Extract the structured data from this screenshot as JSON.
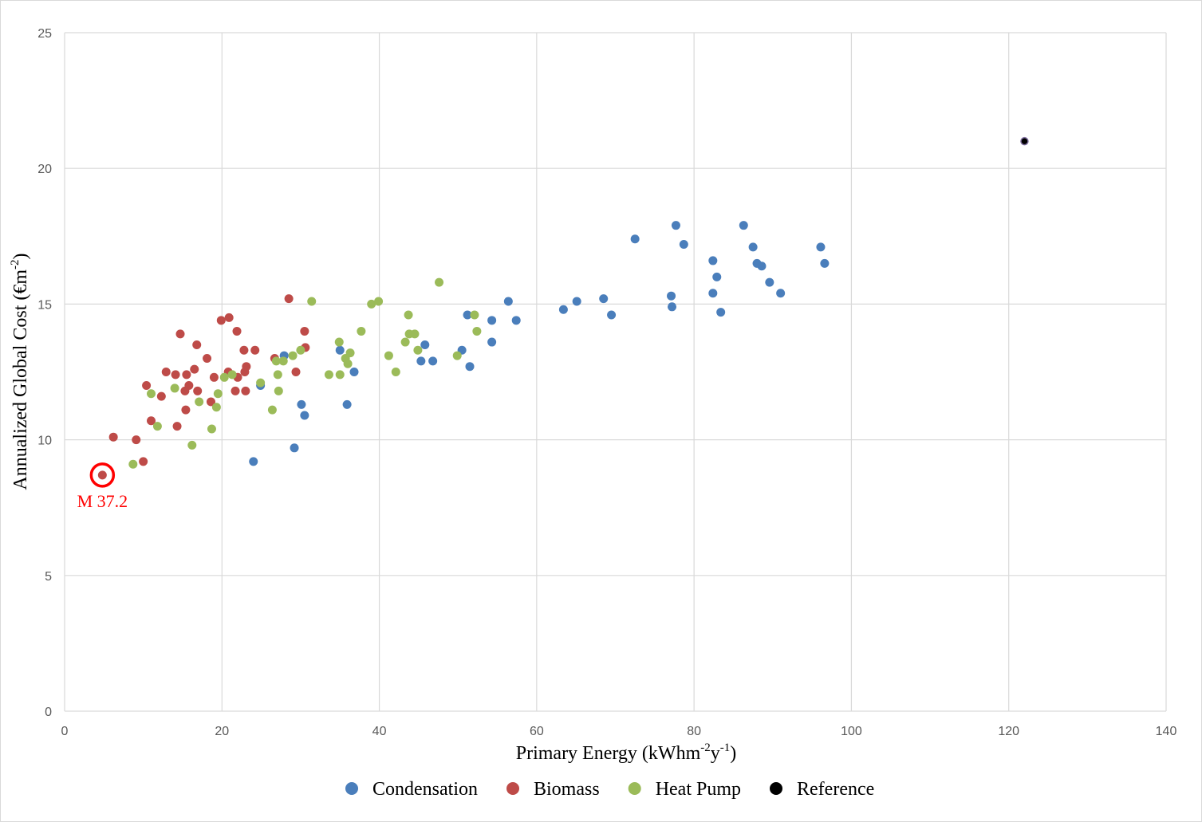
{
  "chart_data": {
    "type": "scatter",
    "title": "",
    "xlabel": "Primary Energy (kWhm-2y-1)",
    "xlabel_parts": {
      "base": "Primary Energy (kWhm",
      "sup1": "-2",
      "mid": "y",
      "sup2": "-1",
      "end": ")"
    },
    "ylabel": "Annualized Global Cost (€m-2)",
    "ylabel_parts": {
      "base": "Annualized Global Cost (€m",
      "sup": "-2",
      "end": ")"
    },
    "xlim": [
      0,
      140
    ],
    "ylim": [
      0,
      25
    ],
    "xticks": [
      0,
      20,
      40,
      60,
      80,
      100,
      120,
      140
    ],
    "yticks": [
      0,
      5,
      10,
      15,
      20,
      25
    ],
    "grid": true,
    "legend_position": "bottom",
    "series": [
      {
        "name": "Condensation",
        "color": "#4a7ebb",
        "points": [
          [
            24.0,
            9.2
          ],
          [
            24.9,
            12.0
          ],
          [
            27.9,
            13.1
          ],
          [
            29.2,
            9.7
          ],
          [
            30.1,
            11.3
          ],
          [
            30.5,
            10.9
          ],
          [
            35.0,
            13.3
          ],
          [
            35.9,
            11.3
          ],
          [
            36.8,
            12.5
          ],
          [
            45.3,
            12.9
          ],
          [
            45.8,
            13.5
          ],
          [
            46.8,
            12.9
          ],
          [
            50.5,
            13.3
          ],
          [
            51.2,
            14.6
          ],
          [
            51.5,
            12.7
          ],
          [
            54.3,
            14.4
          ],
          [
            54.3,
            13.6
          ],
          [
            56.4,
            15.1
          ],
          [
            57.4,
            14.4
          ],
          [
            63.4,
            14.8
          ],
          [
            65.1,
            15.1
          ],
          [
            68.5,
            15.2
          ],
          [
            69.5,
            14.6
          ],
          [
            72.5,
            17.4
          ],
          [
            77.1,
            15.3
          ],
          [
            77.2,
            14.9
          ],
          [
            77.7,
            17.9
          ],
          [
            78.7,
            17.2
          ],
          [
            82.4,
            16.6
          ],
          [
            82.4,
            15.4
          ],
          [
            82.9,
            16.0
          ],
          [
            83.4,
            14.7
          ],
          [
            86.3,
            17.9
          ],
          [
            87.5,
            17.1
          ],
          [
            88.0,
            16.5
          ],
          [
            88.6,
            16.4
          ],
          [
            89.6,
            15.8
          ],
          [
            91.0,
            15.4
          ],
          [
            96.1,
            17.1
          ],
          [
            96.6,
            16.5
          ]
        ]
      },
      {
        "name": "Biomass",
        "color": "#be4b48",
        "points": [
          [
            4.8,
            8.7
          ],
          [
            6.2,
            10.1
          ],
          [
            9.1,
            10.0
          ],
          [
            10.0,
            9.2
          ],
          [
            10.4,
            12.0
          ],
          [
            11.0,
            10.7
          ],
          [
            12.3,
            11.6
          ],
          [
            12.9,
            12.5
          ],
          [
            14.1,
            12.4
          ],
          [
            14.3,
            10.5
          ],
          [
            14.7,
            13.9
          ],
          [
            15.3,
            11.8
          ],
          [
            15.4,
            11.1
          ],
          [
            15.5,
            12.4
          ],
          [
            15.8,
            12.0
          ],
          [
            16.5,
            12.6
          ],
          [
            16.8,
            13.5
          ],
          [
            16.9,
            11.8
          ],
          [
            18.1,
            13.0
          ],
          [
            18.6,
            11.4
          ],
          [
            19.0,
            12.3
          ],
          [
            19.9,
            14.4
          ],
          [
            20.8,
            12.5
          ],
          [
            20.9,
            14.5
          ],
          [
            21.7,
            11.8
          ],
          [
            21.9,
            14.0
          ],
          [
            22.0,
            12.3
          ],
          [
            22.8,
            13.3
          ],
          [
            22.9,
            12.5
          ],
          [
            23.0,
            11.8
          ],
          [
            23.1,
            12.7
          ],
          [
            24.2,
            13.3
          ],
          [
            26.7,
            13.0
          ],
          [
            28.5,
            15.2
          ],
          [
            29.4,
            12.5
          ],
          [
            30.5,
            14.0
          ],
          [
            30.6,
            13.4
          ]
        ]
      },
      {
        "name": "Heat Pump",
        "color": "#9bbb59",
        "points": [
          [
            8.7,
            9.1
          ],
          [
            11.0,
            11.7
          ],
          [
            11.8,
            10.5
          ],
          [
            14.0,
            11.9
          ],
          [
            16.2,
            9.8
          ],
          [
            17.1,
            11.4
          ],
          [
            18.7,
            10.4
          ],
          [
            19.3,
            11.2
          ],
          [
            19.5,
            11.7
          ],
          [
            20.3,
            12.3
          ],
          [
            21.3,
            12.4
          ],
          [
            24.9,
            12.1
          ],
          [
            26.4,
            11.1
          ],
          [
            26.9,
            12.9
          ],
          [
            27.1,
            12.4
          ],
          [
            27.2,
            11.8
          ],
          [
            27.8,
            12.9
          ],
          [
            29.0,
            13.1
          ],
          [
            30.0,
            13.3
          ],
          [
            31.4,
            15.1
          ],
          [
            33.6,
            12.4
          ],
          [
            34.9,
            13.6
          ],
          [
            35.0,
            12.4
          ],
          [
            35.7,
            13.0
          ],
          [
            36.0,
            12.8
          ],
          [
            36.3,
            13.2
          ],
          [
            37.7,
            14.0
          ],
          [
            39.0,
            15.0
          ],
          [
            39.9,
            15.1
          ],
          [
            41.2,
            13.1
          ],
          [
            42.1,
            12.5
          ],
          [
            43.3,
            13.6
          ],
          [
            43.7,
            14.6
          ],
          [
            43.8,
            13.9
          ],
          [
            44.5,
            13.9
          ],
          [
            44.9,
            13.3
          ],
          [
            47.6,
            15.8
          ],
          [
            49.9,
            13.1
          ],
          [
            52.1,
            14.6
          ],
          [
            52.4,
            14.0
          ]
        ]
      },
      {
        "name": "Reference",
        "color": "#000000",
        "points": [
          [
            122.0,
            21.0
          ]
        ]
      }
    ],
    "annotations": [
      {
        "text": "M 37.2",
        "x": 4.8,
        "y": 8.7,
        "color": "#ff0000"
      }
    ]
  }
}
